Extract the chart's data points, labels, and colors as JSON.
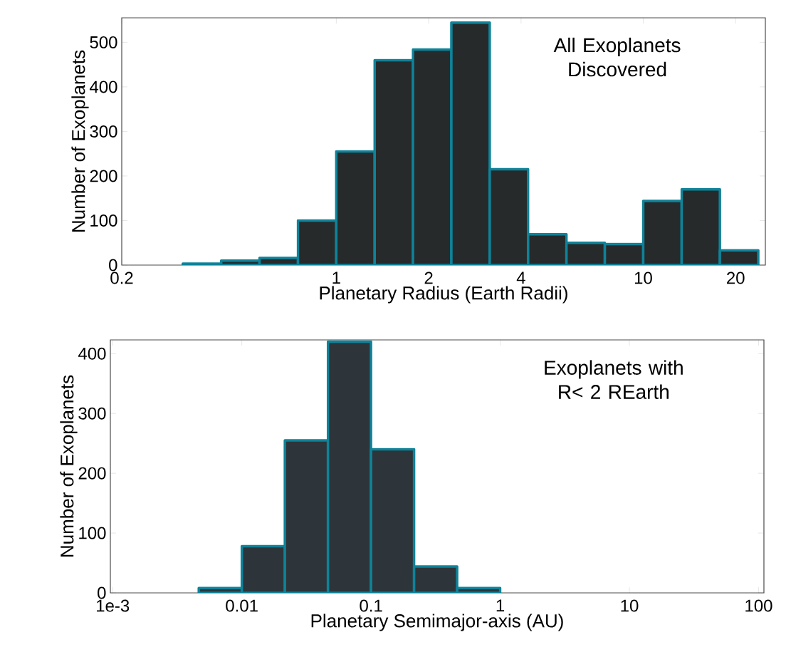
{
  "chart_data": [
    {
      "type": "histogram",
      "xlabel": "Planetary Radius (Earth Radii)",
      "ylabel": "Number of Exoplanets",
      "annotations": [
        "All Exoplanets Discovered"
      ],
      "log": "x",
      "color": "#262a2b",
      "bins": [
        0.3162,
        0.4217,
        0.5623,
        0.7499,
        1,
        1.334,
        1.778,
        2.371,
        3.162,
        4.217,
        5.623,
        7.499,
        10,
        13.34,
        17.78,
        23.71
      ],
      "values": [
        3,
        10,
        16,
        100,
        255,
        460,
        484,
        544,
        215,
        69,
        50,
        47,
        144,
        170,
        33
      ],
      "xlim": [
        0.2,
        25
      ],
      "ylim": [
        0,
        555
      ],
      "xticks": [
        0.2,
        1,
        2,
        4,
        10,
        20
      ],
      "yticks": [
        0,
        100,
        200,
        300,
        400,
        500
      ]
    },
    {
      "type": "histogram",
      "xlabel": "Planetary Semimajor-axis (AU)",
      "ylabel": "Number of Exoplanets",
      "annotations": [
        "Exoplanets with R< 2 REarth"
      ],
      "log": "x",
      "color": "#2d353a",
      "bins": [
        0.004642,
        0.01,
        0.02154,
        0.04642,
        0.1,
        0.2154,
        0.4642,
        1
      ],
      "values": [
        8,
        78,
        255,
        420,
        240,
        44,
        8
      ],
      "xlim": [
        0.00096,
        110
      ],
      "ylim": [
        0,
        423
      ],
      "xticks": [
        {
          "value": 0.001,
          "label": "1e-3"
        },
        0.01,
        0.1,
        1,
        10,
        100
      ],
      "yticks": [
        0,
        100,
        200,
        300,
        400
      ]
    }
  ]
}
